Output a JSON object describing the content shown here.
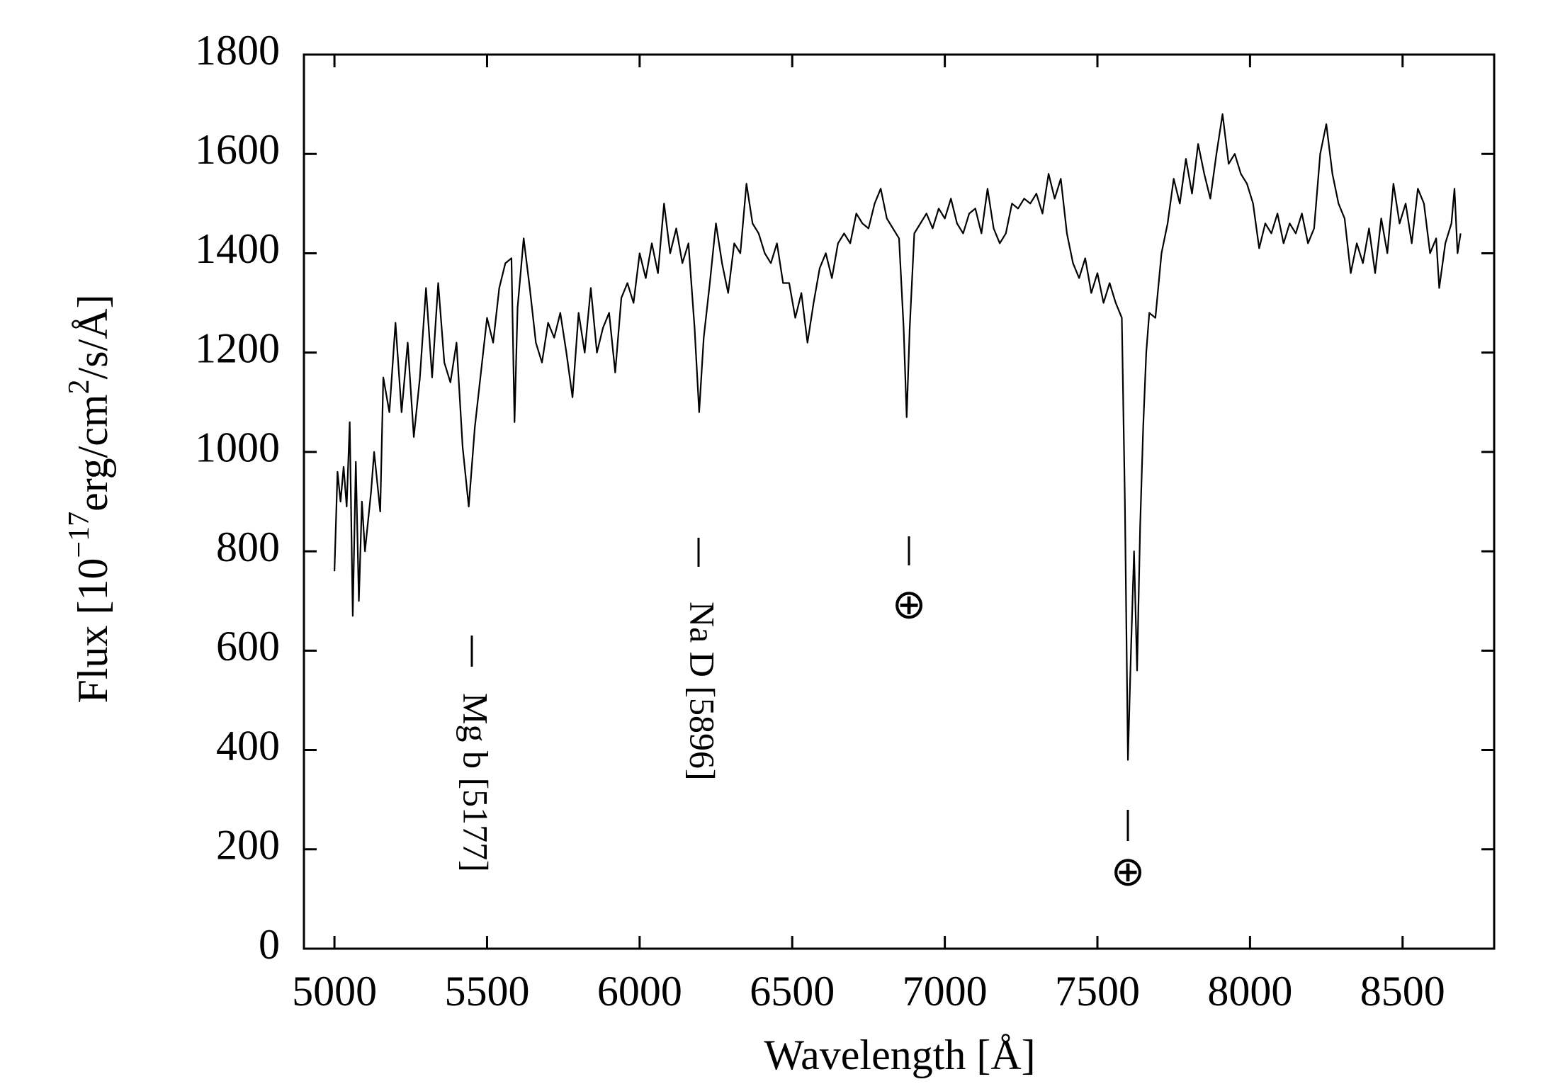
{
  "chart_data": {
    "type": "line",
    "x_label": "Wavelength [Å]",
    "y_label": [
      "Flux [10",
      "−17",
      "erg/cm",
      "2",
      "/s/Å]"
    ],
    "annotations": [
      "Mg b [5177]",
      "Na D [5896]",
      "⊕",
      "⊕"
    ],
    "color": "#000000",
    "xlim": [
      4900,
      8800
    ],
    "xticks": [
      5000,
      5500,
      6000,
      6500,
      7000,
      7500,
      8000,
      8500
    ],
    "ylim": [
      0,
      1800
    ],
    "yticks": [
      0,
      200,
      400,
      600,
      800,
      1000,
      1200,
      1400,
      1600,
      1800
    ],
    "x": [
      5000,
      5010,
      5020,
      5030,
      5040,
      5050,
      5060,
      5070,
      5080,
      5090,
      5100,
      5120,
      5130,
      5150,
      5160,
      5180,
      5200,
      5220,
      5240,
      5260,
      5280,
      5300,
      5320,
      5340,
      5360,
      5380,
      5400,
      5420,
      5440,
      5460,
      5480,
      5500,
      5520,
      5540,
      5560,
      5580,
      5590,
      5600,
      5620,
      5640,
      5660,
      5680,
      5700,
      5720,
      5740,
      5760,
      5780,
      5800,
      5820,
      5840,
      5860,
      5880,
      5900,
      5920,
      5940,
      5960,
      5980,
      6000,
      6020,
      6040,
      6060,
      6080,
      6100,
      6120,
      6140,
      6160,
      6180,
      6195,
      6210,
      6230,
      6250,
      6270,
      6290,
      6310,
      6330,
      6350,
      6370,
      6390,
      6410,
      6430,
      6450,
      6470,
      6490,
      6510,
      6530,
      6550,
      6570,
      6590,
      6610,
      6630,
      6650,
      6670,
      6690,
      6710,
      6730,
      6750,
      6770,
      6790,
      6810,
      6830,
      6850,
      6865,
      6875,
      6885,
      6900,
      6920,
      6940,
      6960,
      6980,
      7000,
      7020,
      7040,
      7060,
      7080,
      7100,
      7120,
      7140,
      7160,
      7180,
      7200,
      7220,
      7240,
      7260,
      7280,
      7300,
      7320,
      7340,
      7360,
      7380,
      7400,
      7420,
      7440,
      7460,
      7480,
      7500,
      7520,
      7540,
      7560,
      7580,
      7590,
      7600,
      7610,
      7620,
      7630,
      7640,
      7650,
      7660,
      7670,
      7690,
      7710,
      7730,
      7750,
      7770,
      7790,
      7810,
      7830,
      7850,
      7870,
      7890,
      7910,
      7930,
      7950,
      7970,
      7990,
      8010,
      8030,
      8050,
      8070,
      8090,
      8110,
      8130,
      8150,
      8170,
      8190,
      8210,
      8230,
      8250,
      8270,
      8290,
      8310,
      8330,
      8350,
      8370,
      8390,
      8410,
      8430,
      8450,
      8470,
      8490,
      8510,
      8530,
      8550,
      8570,
      8590,
      8610,
      8620,
      8640,
      8660,
      8670,
      8680,
      8690
    ],
    "values": [
      760,
      960,
      900,
      970,
      890,
      1060,
      670,
      980,
      700,
      900,
      800,
      920,
      1000,
      880,
      1150,
      1080,
      1260,
      1080,
      1220,
      1030,
      1150,
      1330,
      1150,
      1340,
      1180,
      1140,
      1220,
      1010,
      890,
      1050,
      1160,
      1270,
      1220,
      1330,
      1380,
      1390,
      1060,
      1290,
      1430,
      1330,
      1220,
      1180,
      1260,
      1230,
      1280,
      1200,
      1110,
      1280,
      1200,
      1330,
      1200,
      1250,
      1280,
      1160,
      1310,
      1340,
      1300,
      1400,
      1350,
      1420,
      1360,
      1500,
      1400,
      1450,
      1380,
      1420,
      1250,
      1080,
      1230,
      1340,
      1460,
      1380,
      1320,
      1420,
      1400,
      1540,
      1460,
      1440,
      1400,
      1380,
      1420,
      1340,
      1340,
      1270,
      1320,
      1220,
      1300,
      1370,
      1400,
      1350,
      1420,
      1440,
      1420,
      1480,
      1460,
      1450,
      1500,
      1530,
      1470,
      1450,
      1430,
      1250,
      1070,
      1250,
      1440,
      1460,
      1480,
      1450,
      1490,
      1470,
      1510,
      1460,
      1440,
      1480,
      1490,
      1440,
      1530,
      1450,
      1420,
      1440,
      1500,
      1490,
      1510,
      1500,
      1520,
      1480,
      1560,
      1510,
      1550,
      1440,
      1380,
      1350,
      1390,
      1320,
      1360,
      1300,
      1340,
      1300,
      1270,
      900,
      380,
      600,
      800,
      560,
      850,
      1050,
      1200,
      1280,
      1270,
      1400,
      1460,
      1550,
      1500,
      1590,
      1520,
      1620,
      1560,
      1510,
      1600,
      1680,
      1580,
      1600,
      1560,
      1540,
      1500,
      1410,
      1460,
      1440,
      1480,
      1420,
      1460,
      1440,
      1480,
      1420,
      1450,
      1600,
      1660,
      1560,
      1500,
      1470,
      1360,
      1420,
      1380,
      1450,
      1360,
      1470,
      1400,
      1540,
      1460,
      1500,
      1420,
      1530,
      1500,
      1400,
      1430,
      1330,
      1420,
      1460,
      1530,
      1400,
      1440
    ]
  }
}
